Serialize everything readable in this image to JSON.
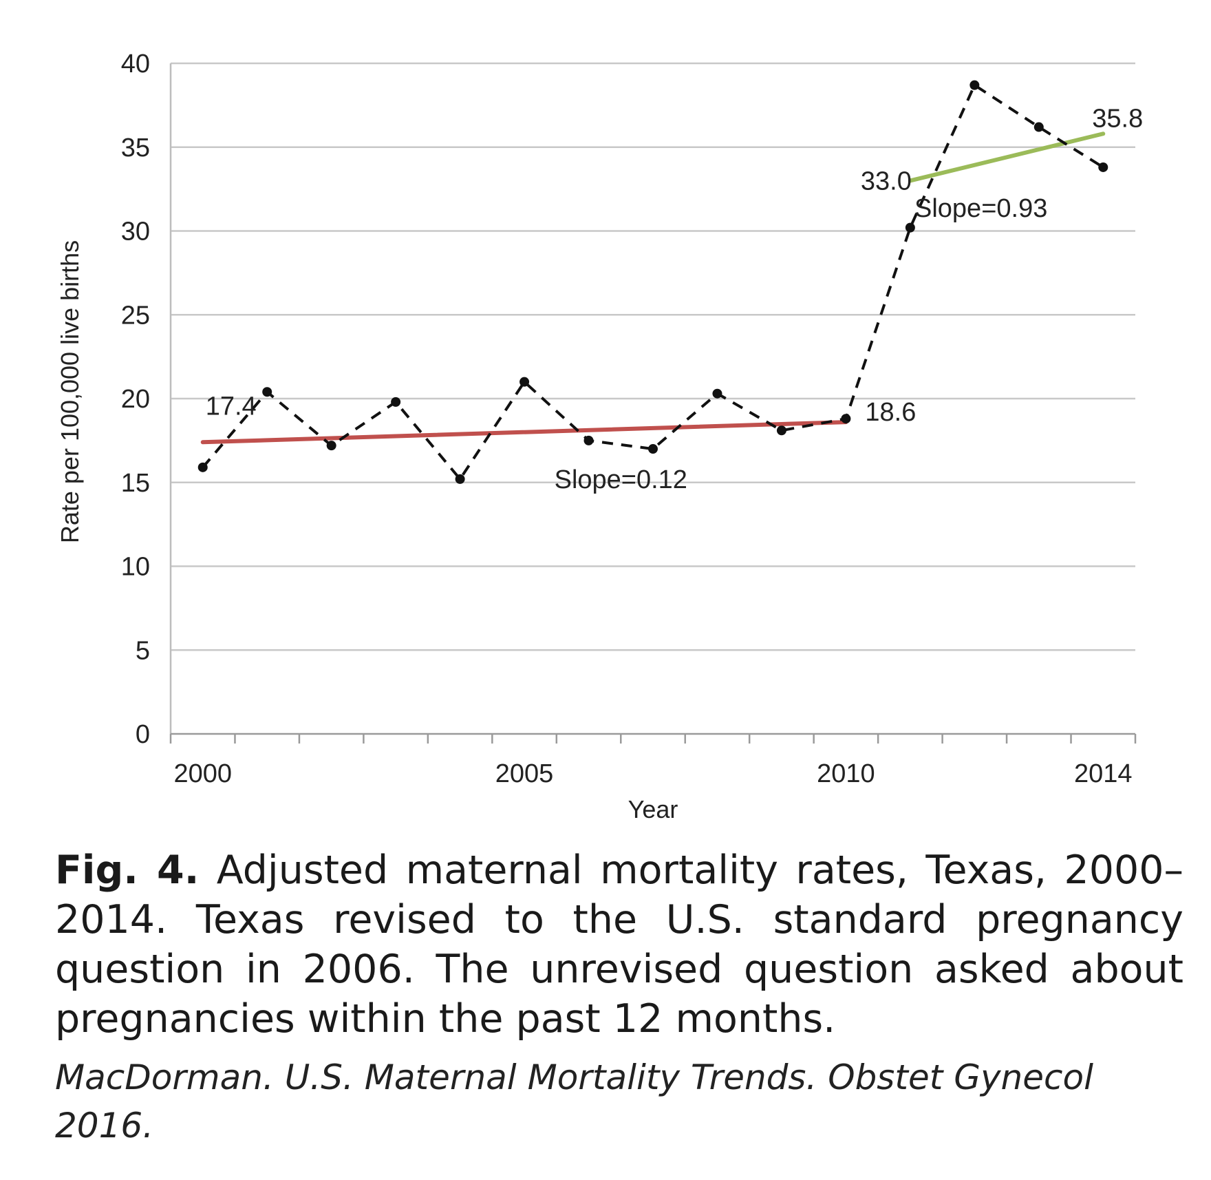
{
  "chart_data": {
    "type": "line",
    "title": "",
    "xlabel": "Year",
    "ylabel": "Rate per 100,000 live births",
    "xlim": [
      1999.5,
      2014.5
    ],
    "ylim": [
      0,
      40
    ],
    "yticks": [
      0,
      5,
      10,
      15,
      20,
      25,
      30,
      35,
      40
    ],
    "xtick_labels": [
      {
        "x": 2000,
        "label": "2000"
      },
      {
        "x": 2005,
        "label": "2005"
      },
      {
        "x": 2010,
        "label": "2010"
      },
      {
        "x": 2014,
        "label": "2014"
      }
    ],
    "grid": true,
    "series": [
      {
        "name": "Adjusted maternal mortality rate",
        "style": "dashed",
        "color": "#111111",
        "x": [
          2000,
          2001,
          2002,
          2003,
          2004,
          2005,
          2006,
          2007,
          2008,
          2009,
          2010,
          2011,
          2012,
          2013,
          2014
        ],
        "values": [
          15.9,
          20.4,
          17.2,
          19.8,
          15.2,
          21.0,
          17.5,
          17.0,
          20.3,
          18.1,
          18.8,
          30.2,
          38.7,
          36.2,
          33.8
        ]
      }
    ],
    "trend_lines": [
      {
        "name": "Trend 2000-2010",
        "color": "#c0504d",
        "x": [
          2000,
          2010
        ],
        "values": [
          17.4,
          18.6
        ],
        "slope_label": "Slope=0.12",
        "start_label": "17.4",
        "end_label": "18.6"
      },
      {
        "name": "Trend 2011-2014",
        "color": "#9bbb59",
        "x": [
          2011,
          2014
        ],
        "values": [
          33.0,
          35.8
        ],
        "slope_label": "Slope=0.93",
        "start_label": "33.0",
        "end_label": "35.8"
      }
    ]
  },
  "caption": {
    "label": "Fig. 4.",
    "text": "Adjusted maternal mortality rates, Texas, 2000–2014. Texas revised to the U.S. standard pregnancy question in 2006. The unrevised question asked about pregnancies within the past 12 months."
  },
  "citation": "MacDorman. U.S. Maternal Mortality Trends. Obstet Gynecol 2016."
}
